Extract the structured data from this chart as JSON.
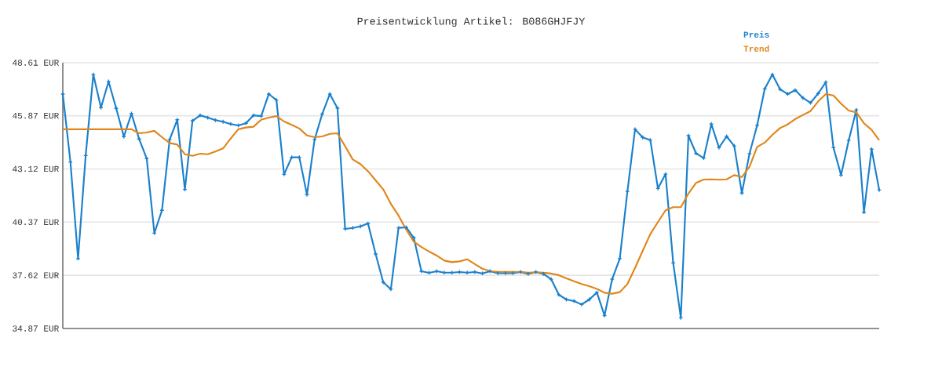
{
  "chart_data": {
    "type": "line",
    "title": "Preisentwicklung Artikel: B086GHJFJY",
    "categories": [
      null,
      null,
      null,
      null,
      null,
      null,
      null,
      null,
      null,
      null,
      null,
      null,
      null,
      null,
      null,
      null,
      null,
      null,
      null,
      null,
      null,
      null,
      null,
      null,
      null,
      null,
      null,
      null,
      null,
      null,
      null,
      null,
      null,
      null,
      null,
      null,
      null,
      null,
      null,
      null,
      null,
      null,
      null,
      null,
      null,
      null,
      null,
      null,
      null,
      null,
      null,
      null,
      null,
      null,
      null,
      null,
      null,
      null,
      null,
      null,
      null,
      null,
      null,
      null,
      null,
      null,
      null,
      null,
      null,
      null,
      null,
      null,
      null,
      null,
      null,
      null,
      null,
      null,
      null,
      null,
      null,
      null,
      null,
      null,
      null,
      null,
      null,
      null,
      null,
      null,
      null,
      null,
      null,
      null,
      null,
      null,
      null,
      null,
      null,
      null,
      null,
      null,
      null,
      null,
      null,
      null,
      null,
      null
    ],
    "series": [
      {
        "name": "Preis",
        "color": "#1a80cc",
        "marker": "cross",
        "values": [
          46.99,
          43.48,
          38.48,
          43.81,
          48.0,
          46.29,
          47.64,
          46.25,
          44.79,
          45.98,
          44.67,
          43.65,
          39.8,
          40.98,
          44.63,
          45.66,
          42.06,
          45.61,
          45.89,
          45.77,
          45.64,
          45.56,
          45.44,
          45.37,
          45.48,
          45.89,
          45.85,
          46.99,
          46.68,
          42.84,
          43.72,
          43.72,
          41.79,
          44.64,
          45.96,
          46.99,
          46.26,
          40.02,
          40.07,
          40.15,
          40.3,
          38.72,
          37.26,
          36.9,
          40.07,
          40.1,
          39.56,
          37.83,
          37.75,
          37.83,
          37.76,
          37.76,
          37.79,
          37.76,
          37.79,
          37.72,
          37.83,
          37.73,
          37.73,
          37.73,
          37.79,
          37.69,
          37.79,
          37.69,
          37.42,
          36.62,
          36.37,
          36.29,
          36.11,
          36.37,
          36.73,
          35.54,
          37.42,
          38.48,
          41.96,
          45.17,
          44.75,
          44.61,
          42.11,
          42.85,
          38.26,
          35.42,
          44.84,
          43.92,
          43.68,
          45.44,
          44.22,
          44.8,
          44.31,
          41.87,
          43.91,
          45.37,
          47.26,
          48.0,
          47.24,
          46.99,
          47.19,
          46.79,
          46.54,
          47.02,
          47.6,
          44.22,
          42.8,
          44.59,
          46.17,
          40.88,
          44.14,
          42.03
        ]
      },
      {
        "name": "Trend",
        "color": "#e0861a",
        "marker": "none",
        "values": [
          45.17,
          45.17,
          45.17,
          45.17,
          45.17,
          45.17,
          45.17,
          45.17,
          45.17,
          45.17,
          44.96,
          45.0,
          45.09,
          44.76,
          44.46,
          44.38,
          43.88,
          43.8,
          43.91,
          43.88,
          44.02,
          44.18,
          44.69,
          45.17,
          45.26,
          45.3,
          45.66,
          45.77,
          45.85,
          45.57,
          45.4,
          45.21,
          44.85,
          44.76,
          44.8,
          44.93,
          44.96,
          44.29,
          43.61,
          43.37,
          43.0,
          42.53,
          42.06,
          41.31,
          40.71,
          39.99,
          39.36,
          39.08,
          38.85,
          38.64,
          38.38,
          38.3,
          38.34,
          38.45,
          38.2,
          37.96,
          37.84,
          37.8,
          37.8,
          37.8,
          37.8,
          37.76,
          37.78,
          37.76,
          37.71,
          37.63,
          37.46,
          37.31,
          37.17,
          37.06,
          36.92,
          36.72,
          36.67,
          36.75,
          37.17,
          38.0,
          38.88,
          39.75,
          40.37,
          40.98,
          41.14,
          41.14,
          41.85,
          42.4,
          42.57,
          42.58,
          42.56,
          42.58,
          42.8,
          42.7,
          43.23,
          44.26,
          44.48,
          44.88,
          45.23,
          45.42,
          45.7,
          45.91,
          46.11,
          46.61,
          46.99,
          46.92,
          46.49,
          46.14,
          46.04,
          45.48,
          45.14,
          44.6
        ]
      }
    ],
    "ylim": [
      34.87,
      48.61
    ],
    "yticks": [
      {
        "value": 34.87,
        "label": "34.87 EUR"
      },
      {
        "value": 37.62,
        "label": "37.62 EUR"
      },
      {
        "value": 40.37,
        "label": "40.37 EUR"
      },
      {
        "value": 43.12,
        "label": "43.12 EUR"
      },
      {
        "value": 45.87,
        "label": "45.87 EUR"
      },
      {
        "value": 48.61,
        "label": "48.61 EUR"
      }
    ],
    "grid": "y",
    "legend": "top right",
    "tick_labels": "y"
  }
}
